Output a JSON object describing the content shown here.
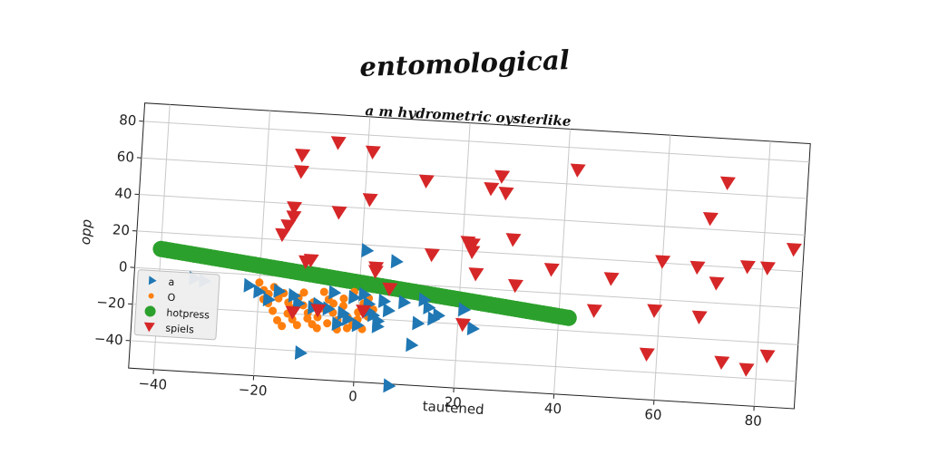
{
  "chart_data": {
    "type": "scatter",
    "title": "entomological",
    "subtitle": "a m hydrometric oysterlike",
    "xlabel": "tautened",
    "ylabel": "opp",
    "xlim": [
      -45,
      88
    ],
    "ylim": [
      -55,
      90
    ],
    "xticks": [
      -40,
      -20,
      0,
      20,
      40,
      60,
      80
    ],
    "yticks": [
      -40,
      -20,
      0,
      20,
      40,
      60,
      80
    ],
    "xtick_labels": [
      "−40",
      "−20",
      "0",
      "20",
      "40",
      "60",
      "80"
    ],
    "ytick_labels": [
      "−40",
      "−20",
      "0",
      "20",
      "40",
      "60",
      "80"
    ],
    "grid": true,
    "legend_position": "lower-left",
    "series": [
      {
        "name": "a",
        "color": "#1f77b4",
        "marker": "triangle-right",
        "points": [
          [
            -33,
            -4
          ],
          [
            -31,
            -5
          ],
          [
            -22,
            -6
          ],
          [
            -20,
            -9
          ],
          [
            -18,
            -13
          ],
          [
            -16,
            -8
          ],
          [
            -13,
            -10
          ],
          [
            -12,
            -14
          ],
          [
            -11,
            -41
          ],
          [
            -9,
            -16
          ],
          [
            -8,
            -14
          ],
          [
            -6,
            -16
          ],
          [
            -5,
            -7
          ],
          [
            -3,
            -18
          ],
          [
            -2,
            -21
          ],
          [
            -1,
            -9
          ],
          [
            1,
            17
          ],
          [
            1,
            -7
          ],
          [
            2,
            -12
          ],
          [
            2,
            -16
          ],
          [
            3,
            -18
          ],
          [
            4,
            -21
          ],
          [
            4,
            -24
          ],
          [
            5,
            -10
          ],
          [
            6,
            -15
          ],
          [
            7,
            12
          ],
          [
            7,
            -56
          ],
          [
            9,
            -10
          ],
          [
            11,
            -33
          ],
          [
            12,
            -21
          ],
          [
            13,
            -8
          ],
          [
            14,
            -12
          ],
          [
            15,
            -18
          ],
          [
            16,
            -16
          ],
          [
            21,
            -12
          ],
          [
            23,
            -22
          ],
          [
            0,
            -24
          ],
          [
            -4,
            -24
          ]
        ]
      },
      {
        "name": "O",
        "color": "#ff7f0e",
        "marker": "circle-small",
        "points": [
          [
            -20,
            -4
          ],
          [
            -19,
            -8
          ],
          [
            -18,
            -10
          ],
          [
            -17,
            -6
          ],
          [
            -16,
            -12
          ],
          [
            -15,
            -9
          ],
          [
            -14,
            -14
          ],
          [
            -13,
            -17
          ],
          [
            -12,
            -11
          ],
          [
            -11,
            -15
          ],
          [
            -10,
            -19
          ],
          [
            -9,
            -13
          ],
          [
            -8,
            -21
          ],
          [
            -7,
            -16
          ],
          [
            -6,
            -11
          ],
          [
            -5,
            -18
          ],
          [
            -4,
            -22
          ],
          [
            -3,
            -14
          ],
          [
            -2,
            -20
          ],
          [
            -1,
            -24
          ],
          [
            0,
            -17
          ],
          [
            1,
            -12
          ],
          [
            2,
            -9
          ],
          [
            -16,
            -24
          ],
          [
            -14,
            -20
          ],
          [
            -12,
            -26
          ],
          [
            -10,
            -22
          ],
          [
            -8,
            -27
          ],
          [
            -6,
            -24
          ],
          [
            -4,
            -27
          ],
          [
            -2,
            -26
          ],
          [
            0,
            -21
          ],
          [
            2,
            -19
          ],
          [
            -18,
            -15
          ],
          [
            -15,
            -27
          ],
          [
            -11,
            -8
          ],
          [
            -7,
            -7
          ],
          [
            -3,
            -10
          ],
          [
            -1,
            -6
          ],
          [
            -19,
            -13
          ],
          [
            -17,
            -19
          ],
          [
            -13,
            -23
          ],
          [
            -9,
            -25
          ],
          [
            -5,
            -13
          ],
          [
            1,
            -26
          ],
          [
            3,
            -15
          ]
        ]
      },
      {
        "name": "hotpress",
        "color": "#2ca02c",
        "marker": "circle-large",
        "line": {
          "x_start": -40,
          "y_start": 11,
          "x_end": 42,
          "y_end": -13,
          "count": 110
        }
      },
      {
        "name": "spiels",
        "color": "#d62728",
        "marker": "triangle-down",
        "points": [
          [
            -6,
            75
          ],
          [
            -13,
            67
          ],
          [
            -13,
            58
          ],
          [
            -14,
            33
          ],
          [
            -14,
            38
          ],
          [
            -15,
            28
          ],
          [
            -16,
            23
          ],
          [
            -11,
            9
          ],
          [
            -10,
            10
          ],
          [
            -5,
            37
          ],
          [
            1,
            71
          ],
          [
            1,
            45
          ],
          [
            3,
            8
          ],
          [
            3,
            6
          ],
          [
            6,
            -3
          ],
          [
            -13,
            -19
          ],
          [
            -8,
            -17
          ],
          [
            1,
            -16
          ],
          [
            12,
            57
          ],
          [
            14,
            17
          ],
          [
            21,
            25
          ],
          [
            22,
            24
          ],
          [
            22,
            20
          ],
          [
            23,
            8
          ],
          [
            25,
            55
          ],
          [
            27,
            62
          ],
          [
            28,
            53
          ],
          [
            30,
            28
          ],
          [
            31,
            3
          ],
          [
            38,
            13
          ],
          [
            42,
            68
          ],
          [
            47,
            -8
          ],
          [
            50,
            10
          ],
          [
            21,
            -20
          ],
          [
            60,
            21
          ],
          [
            59,
            -6
          ],
          [
            58,
            -30
          ],
          [
            67,
            19
          ],
          [
            68,
            -8
          ],
          [
            69,
            46
          ],
          [
            71,
            11
          ],
          [
            72,
            66
          ],
          [
            73,
            -32
          ],
          [
            77,
            21
          ],
          [
            78,
            -35
          ],
          [
            81,
            21
          ],
          [
            82,
            -27
          ],
          [
            86,
            32
          ]
        ]
      }
    ]
  }
}
